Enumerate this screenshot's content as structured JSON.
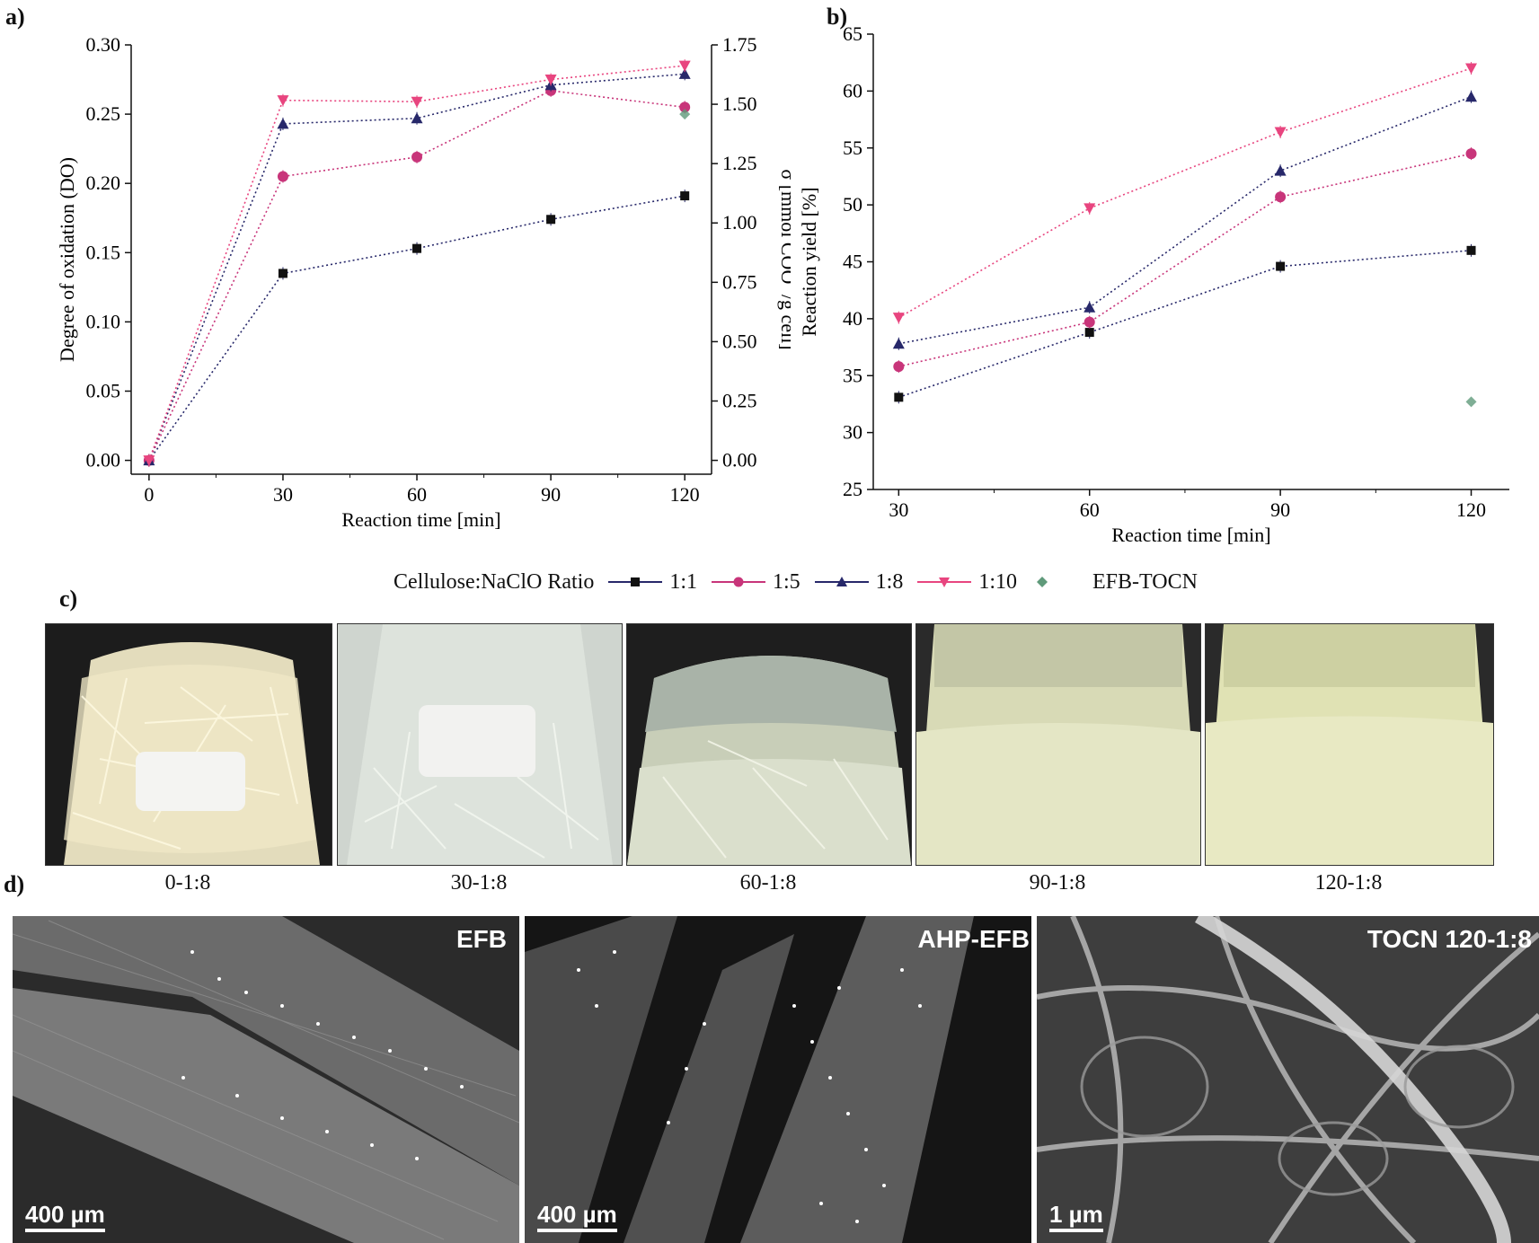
{
  "panels": {
    "a": "a)",
    "b": "b)",
    "c": "c)",
    "d": "d)"
  },
  "chart_data": [
    {
      "type": "line",
      "panel": "a",
      "xlabel": "Reaction time [min]",
      "ylabel": "Degree of oxidation (DO)",
      "ylabel_right": "σ [mmol COO⁻/g cell]",
      "x_ticks": [
        "0",
        "30",
        "60",
        "90",
        "120"
      ],
      "y_ticks": [
        "0.00",
        "0.05",
        "0.10",
        "0.15",
        "0.20",
        "0.25",
        "0.30"
      ],
      "y_ticks_right": [
        "0.00",
        "0.25",
        "0.50",
        "0.75",
        "1.00",
        "1.25",
        "1.50",
        "1.75"
      ],
      "xlim": [
        -4,
        126
      ],
      "ylim": [
        -0.01,
        0.3
      ],
      "x": [
        0,
        30,
        60,
        90,
        120
      ],
      "series": [
        {
          "name": "1:1",
          "values": [
            0.0,
            0.135,
            0.153,
            0.174,
            0.191
          ],
          "color": "#27286a",
          "marker": "square"
        },
        {
          "name": "1:5",
          "values": [
            0.0,
            0.205,
            0.219,
            0.267,
            0.255
          ],
          "color": "#c8357a",
          "marker": "circle"
        },
        {
          "name": "1:8",
          "values": [
            0.0,
            0.243,
            0.247,
            0.271,
            0.279
          ],
          "color": "#27286a",
          "marker": "triangle-up"
        },
        {
          "name": "1:10",
          "values": [
            0.0,
            0.26,
            0.259,
            0.275,
            0.285
          ],
          "color": "#e8457f",
          "marker": "triangle-down"
        }
      ],
      "extra_points": [
        {
          "name": "EFB-TOCN",
          "x": 120,
          "y": 0.25,
          "color": "#5f9a7a",
          "marker": "diamond"
        }
      ]
    },
    {
      "type": "line",
      "panel": "b",
      "xlabel": "Reaction time [min]",
      "ylabel": "Reaction yield [%]",
      "x_ticks": [
        "30",
        "60",
        "90",
        "120"
      ],
      "y_ticks": [
        "25",
        "30",
        "35",
        "40",
        "45",
        "50",
        "55",
        "60",
        "65"
      ],
      "xlim": [
        26,
        126
      ],
      "ylim": [
        25,
        65
      ],
      "x": [
        30,
        60,
        90,
        120
      ],
      "series": [
        {
          "name": "1:1",
          "values": [
            33.1,
            38.8,
            44.6,
            46.0
          ],
          "color": "#27286a",
          "marker": "square"
        },
        {
          "name": "1:5",
          "values": [
            35.8,
            39.7,
            50.7,
            54.5
          ],
          "color": "#c8357a",
          "marker": "circle"
        },
        {
          "name": "1:8",
          "values": [
            37.8,
            41.0,
            53.0,
            59.5
          ],
          "color": "#27286a",
          "marker": "triangle-up"
        },
        {
          "name": "1:10",
          "values": [
            40.1,
            49.7,
            56.4,
            62.0
          ],
          "color": "#e8457f",
          "marker": "triangle-down"
        }
      ],
      "extra_points": [
        {
          "name": "EFB-TOCN",
          "x": 120,
          "y": 32.7,
          "color": "#5f9a7a",
          "marker": "diamond"
        }
      ]
    }
  ],
  "legend": {
    "title": "Cellulose:NaClO Ratio",
    "items": [
      "1:1",
      "1:5",
      "1:8",
      "1:10",
      "EFB-TOCN"
    ]
  },
  "photos": [
    {
      "caption": "0-1:8"
    },
    {
      "caption": "30-1:8"
    },
    {
      "caption": "60-1:8"
    },
    {
      "caption": "90-1:8"
    },
    {
      "caption": "120-1:8"
    }
  ],
  "sem": [
    {
      "label": "EFB",
      "scale": "400 µm"
    },
    {
      "label": "AHP-EFB",
      "scale": "400 µm"
    },
    {
      "label": "TOCN 120-1:8",
      "scale": "1 µm"
    }
  ]
}
